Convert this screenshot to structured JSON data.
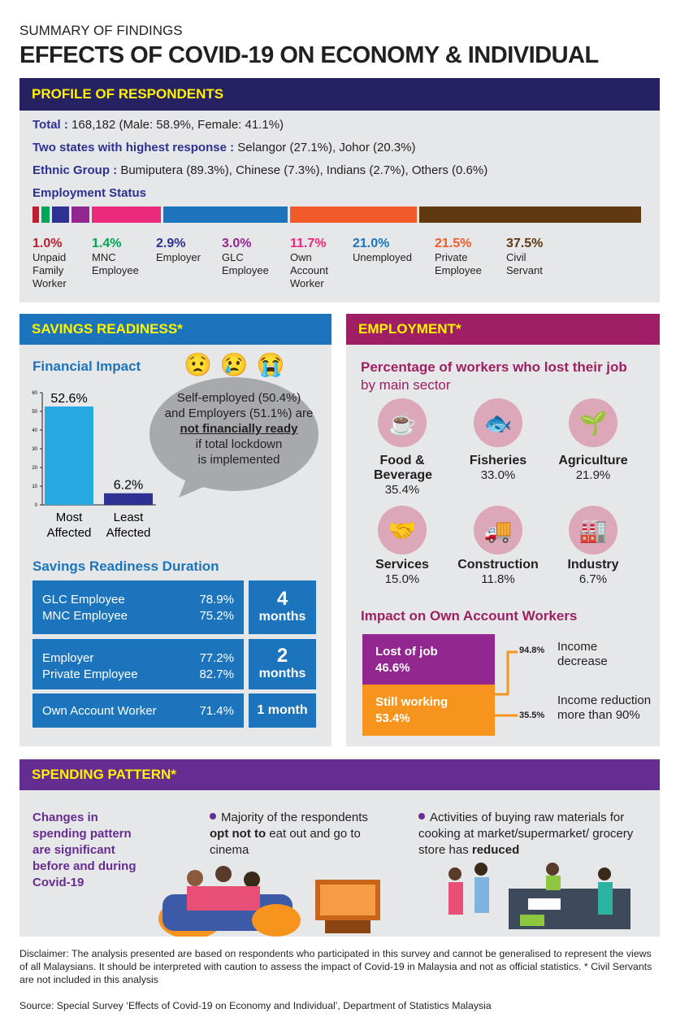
{
  "header": {
    "subtitle": "SUMMARY OF FINDINGS",
    "title": "EFFECTS OF COVID-19 ON ECONOMY & INDIVIDUAL"
  },
  "profile": {
    "heading": "PROFILE OF RESPONDENTS",
    "total_label": "Total :",
    "total_value": " 168,182 (Male: 58.9%, Female: 41.1%)",
    "states_label": "Two states with highest response :",
    "states_value": " Selangor (27.1%), Johor (20.3%)",
    "ethnic_label": "Ethnic Group :",
    "ethnic_value": " Bumiputera (89.3%), Chinese (7.3%), Indians (2.7%), Others (0.6%)",
    "employment_label": "Employment Status",
    "employment": [
      {
        "pct": "1.0%",
        "label": "Unpaid Family Worker",
        "value": 1.0,
        "color": "#be1e2d"
      },
      {
        "pct": "1.4%",
        "label": "MNC Employee",
        "value": 1.4,
        "color": "#00a651"
      },
      {
        "pct": "2.9%",
        "label": "Employer",
        "value": 2.9,
        "color": "#2e3192"
      },
      {
        "pct": "3.0%",
        "label": "GLC Employee",
        "value": 3.0,
        "color": "#92278f"
      },
      {
        "pct": "11.7%",
        "label": "Own Account Worker",
        "value": 11.7,
        "color": "#ec2a7b"
      },
      {
        "pct": "21.0%",
        "label": "Unemployed",
        "value": 21.0,
        "color": "#1c75bc"
      },
      {
        "pct": "21.5%",
        "label": "Private Employee",
        "value": 21.5,
        "color": "#f15a29"
      },
      {
        "pct": "37.5%",
        "label": "Civil Servant",
        "value": 37.5,
        "color": "#603913"
      }
    ]
  },
  "savings": {
    "heading": "SAVINGS READINESS*",
    "financial_impact": "Financial Impact",
    "chart_data": {
      "type": "bar",
      "categories": [
        "Most Affected",
        "Least Affected"
      ],
      "values": [
        52.6,
        6.2
      ],
      "data_labels": [
        "52.6%",
        "6.2%"
      ],
      "ylim": [
        0,
        60
      ],
      "yticks": [
        "0",
        "10",
        "20",
        "30",
        "40",
        "50",
        "60"
      ],
      "colors": [
        "#27aae1",
        "#2e3192"
      ]
    },
    "bubble": {
      "line1": "Self-employed (50.4%)",
      "line2": "and Employers (51.1%) are",
      "emph": "not financially ready",
      "line3": "if total lockdown",
      "line4": "is implemented"
    },
    "duration_heading": "Savings Readiness Duration",
    "groups": [
      {
        "rows": [
          [
            "GLC Employee",
            "78.9%"
          ],
          [
            "MNC Employee",
            "75.2%"
          ]
        ],
        "num": "4",
        "unit": "months"
      },
      {
        "rows": [
          [
            "Employer",
            "77.2%"
          ],
          [
            "Private Employee",
            "82.7%"
          ]
        ],
        "num": "2",
        "unit": "months"
      },
      {
        "rows": [
          [
            "Own Account Worker",
            "71.4%"
          ]
        ],
        "num": "",
        "unit": "1 month"
      }
    ]
  },
  "employment": {
    "heading": "EMPLOYMENT*",
    "subheading": "Percentage of workers who lost their job",
    "subheading2": "by main sector",
    "sectors": [
      {
        "name": "Food & Beverage",
        "pct": "35.4%",
        "icon": "coffee-cup-icon",
        "glyph": "☕"
      },
      {
        "name": "Fisheries",
        "pct": "33.0%",
        "icon": "fish-icon",
        "glyph": "🐟"
      },
      {
        "name": "Agriculture",
        "pct": "21.9%",
        "icon": "plant-icon",
        "glyph": "🌱"
      },
      {
        "name": "Services",
        "pct": "15.0%",
        "icon": "handshake-icon",
        "glyph": "🤝"
      },
      {
        "name": "Construction",
        "pct": "11.8%",
        "icon": "cement-truck-icon",
        "glyph": "🚚"
      },
      {
        "name": "Industry",
        "pct": "6.7%",
        "icon": "factory-icon",
        "glyph": "🏭"
      }
    ],
    "own_account": {
      "heading": "Impact on Own Account Workers",
      "lost_label": "Lost of job",
      "lost_pct": "46.6%",
      "working_label": "Still working",
      "working_pct": "53.4%",
      "decrease_pct": "94.8%",
      "decrease_label": "Income decrease",
      "reduction_pct": "35.5%",
      "reduction_label": "Income reduction more than 90%",
      "colors": {
        "lost": "#92278f",
        "working": "#f7941d"
      }
    }
  },
  "spending": {
    "heading": "SPENDING PATTERN*",
    "intro": "Changes in spending pattern are significant before and during Covid-19",
    "b1_pre": "Majority of the respondents ",
    "b1_bold": "opt not to",
    "b1_post": " eat out and go to cinema",
    "b2_pre": "Activities of buying raw materials for cooking at market/supermarket/ grocery store has ",
    "b2_bold": "reduced"
  },
  "footer": {
    "disclaimer": "Disclaimer: The analysis presented are based on respondents who participated in this survey and cannot be generalised to represent the views of all Malaysians. It should be interpreted with caution to assess the impact of Covid-19 in Malaysia and not as official statistics.  * Civil Servants are not included in this analysis",
    "source": "Source: Special Survey ‘Effects of Covid-19 on Economy and Individual’, Department of Statistics Malaysia"
  }
}
